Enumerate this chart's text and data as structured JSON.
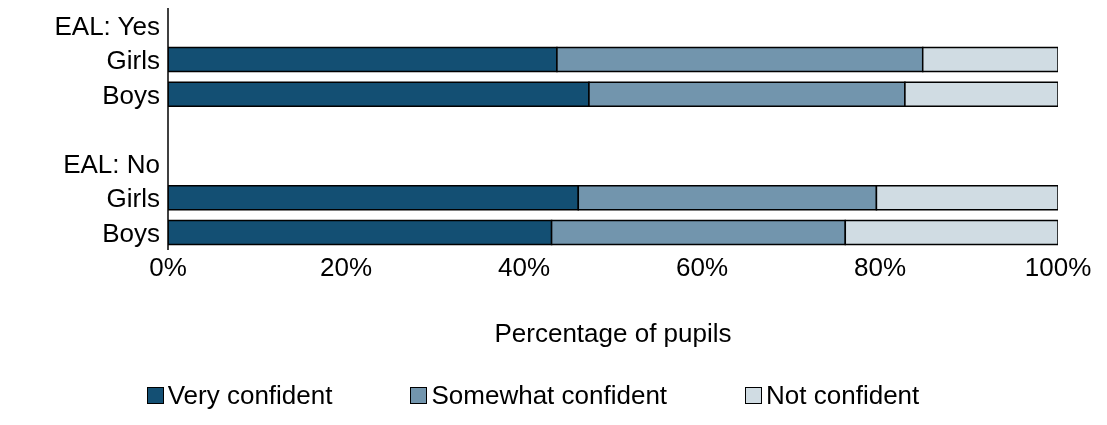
{
  "chart_data": {
    "type": "bar",
    "orientation": "horizontal",
    "stacked": true,
    "xlabel": "Percentage of pupils",
    "categories": [
      "EAL: Yes",
      "Girls",
      "Boys",
      null,
      "EAL: No",
      "Girls",
      "Boys"
    ],
    "series": [
      {
        "name": "Very confident",
        "color": "#134f73",
        "values": [
          null,
          43.7,
          47.3,
          null,
          null,
          46.1,
          43.1
        ]
      },
      {
        "name": "Somewhat confident",
        "color": "#7295ad",
        "values": [
          null,
          41.1,
          35.5,
          null,
          null,
          33.5,
          33.0
        ]
      },
      {
        "name": "Not confident",
        "color": "#d0dce3",
        "values": [
          null,
          15.2,
          17.2,
          null,
          null,
          20.4,
          23.9
        ]
      }
    ],
    "xlim": [
      0,
      100
    ],
    "xticks": [
      {
        "value": 0,
        "label": "0%"
      },
      {
        "value": 20,
        "label": "20%"
      },
      {
        "value": 40,
        "label": "40%"
      },
      {
        "value": 60,
        "label": "60%"
      },
      {
        "value": 80,
        "label": "80%"
      },
      {
        "value": 100,
        "label": "100%"
      }
    ],
    "grid": false,
    "legend": "bottom"
  }
}
